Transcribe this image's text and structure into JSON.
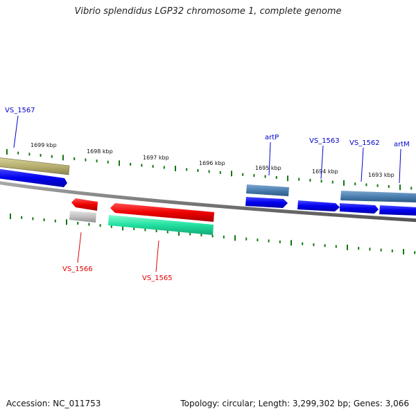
{
  "title": "Vibrio splendidus LGP32 chromosome 1, complete genome",
  "footer": {
    "accession": "Accession: NC_011753",
    "summary": "Topology: circular; Length: 3,299,302 bp; Genes: 3,066"
  },
  "kbp_labels": [
    "1699 kbp",
    "1698 kbp",
    "1697 kbp",
    "1696 kbp",
    "1695 kbp",
    "1694 kbp",
    "1693 kbp"
  ],
  "gene_labels": [
    {
      "id": "VS_1567",
      "strand": "forward",
      "color": "#0000cc"
    },
    {
      "id": "artP",
      "strand": "forward",
      "color": "#0000cc"
    },
    {
      "id": "VS_1563",
      "strand": "forward",
      "color": "#0000cc"
    },
    {
      "id": "VS_1562",
      "strand": "forward",
      "color": "#0000cc"
    },
    {
      "id": "artM",
      "strand": "forward",
      "color": "#0000cc"
    },
    {
      "id": "VS_1566",
      "strand": "reverse",
      "color": "#dd0000"
    },
    {
      "id": "VS_1565",
      "strand": "reverse",
      "color": "#dd0000"
    }
  ],
  "colors": {
    "backbone": "#7a7a7a",
    "tick": "#117711",
    "forward_cds": "#0000ee",
    "reverse_cds": "#ee0000",
    "steel": "#4a7fb0",
    "olive": "#b8b070",
    "mint": "#22e0a0",
    "gray_feature": "#c0c0c0"
  }
}
